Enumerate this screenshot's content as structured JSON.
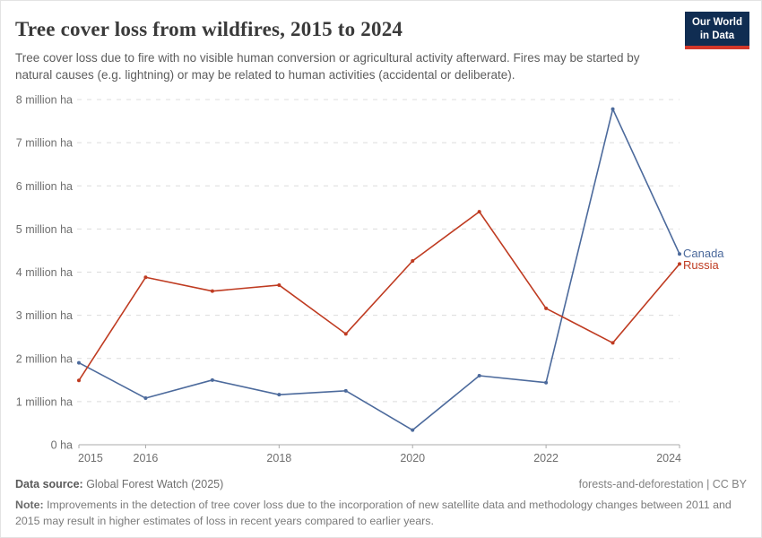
{
  "header": {
    "title": "Tree cover loss from wildfires, 2015 to 2024",
    "subtitle": "Tree cover loss due to fire with no visible human conversion or agricultural activity afterward. Fires may be started by natural causes (e.g. lightning) or may be related to human activities (accidental or deliberate).",
    "logo": {
      "line1": "Our World",
      "line2": "in Data"
    }
  },
  "chart_data": {
    "type": "line",
    "title": "Tree cover loss from wildfires, 2015 to 2024",
    "x": [
      2015,
      2016,
      2017,
      2018,
      2019,
      2020,
      2021,
      2022,
      2023,
      2024
    ],
    "series": [
      {
        "name": "Canada",
        "color": "#4C6A9C",
        "values": [
          1.9,
          1.08,
          1.5,
          1.16,
          1.25,
          0.34,
          1.6,
          1.44,
          7.78,
          4.42
        ]
      },
      {
        "name": "Russia",
        "color": "#BF3B21",
        "values": [
          1.49,
          3.88,
          3.56,
          3.7,
          2.57,
          4.26,
          5.4,
          3.16,
          2.36,
          4.19
        ]
      }
    ],
    "unit": "million ha",
    "ylim": [
      0,
      8
    ],
    "yticks": [
      0,
      1,
      2,
      3,
      4,
      5,
      6,
      7,
      8
    ],
    "ytick_labels": [
      "0 ha",
      "1 million ha",
      "2 million ha",
      "3 million ha",
      "4 million ha",
      "5 million ha",
      "6 million ha",
      "7 million ha",
      "8 million ha"
    ],
    "xticks": [
      2015,
      2016,
      2018,
      2020,
      2022,
      2024
    ],
    "grid": "horizontal-dashed",
    "legend": "end-of-line-labels"
  },
  "footer": {
    "data_source_label": "Data source:",
    "data_source_value": " Global Forest Watch (2025)",
    "attribution": "forests-and-deforestation | CC BY",
    "note_label": "Note:",
    "note_text": " Improvements in the detection of tree cover loss due to the incorporation of new satellite data and methodology changes between 2011 and 2015 may result in higher estimates of loss in recent years compared to earlier years."
  }
}
